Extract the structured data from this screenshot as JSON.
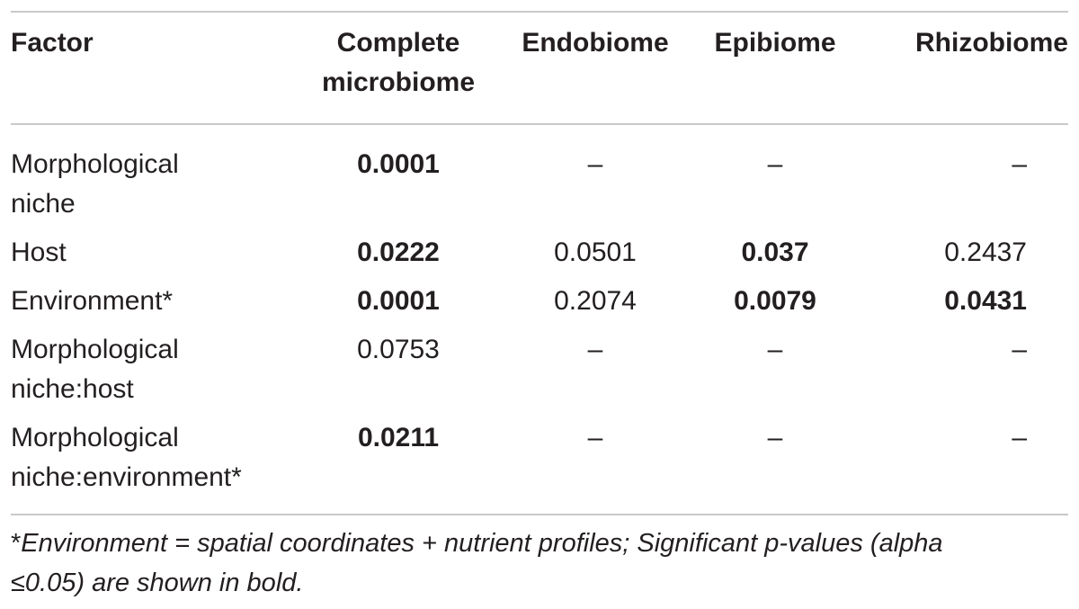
{
  "table": {
    "headers": {
      "factor": "Factor",
      "complete_line1": "Complete",
      "complete_line2": "microbiome",
      "endobiome": "Endobiome",
      "epibiome": "Epibiome",
      "rhizobiome": "Rhizobiome"
    },
    "rows": [
      {
        "factor_line1": "Morphological",
        "factor_line2": "niche",
        "complete": "0.0001",
        "endobiome": "–",
        "epibiome": "–",
        "rhizobiome": "–"
      },
      {
        "factor_line1": "Host",
        "factor_line2": "",
        "complete": "0.0222",
        "endobiome": "0.0501",
        "epibiome": "0.037",
        "rhizobiome": "0.2437"
      },
      {
        "factor_line1": "Environment*",
        "factor_line2": "",
        "complete": "0.0001",
        "endobiome": "0.2074",
        "epibiome": "0.0079",
        "rhizobiome": "0.0431"
      },
      {
        "factor_line1": "Morphological",
        "factor_line2": "niche:host",
        "complete": "0.0753",
        "endobiome": "–",
        "epibiome": "–",
        "rhizobiome": "–"
      },
      {
        "factor_line1": "Morphological",
        "factor_line2": "niche:environment*",
        "complete": "0.0211",
        "endobiome": "–",
        "epibiome": "–",
        "rhizobiome": "–"
      }
    ]
  },
  "footnote": {
    "mark": "*",
    "line1": "Environment = spatial coordinates + nutrient profiles; Significant p-values (alpha",
    "line2": "≤0.05) are shown in bold."
  }
}
